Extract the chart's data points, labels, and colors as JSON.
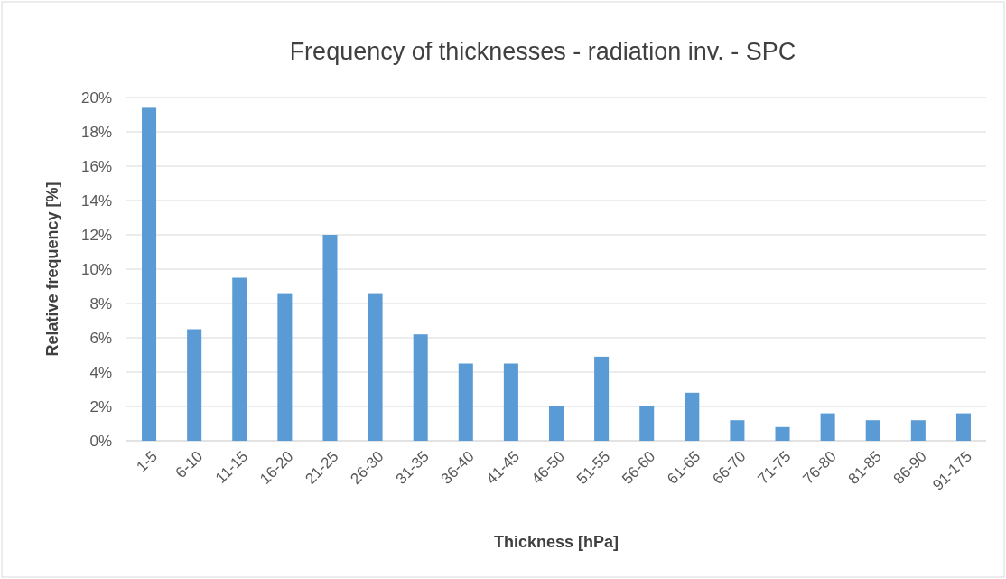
{
  "chart_data": {
    "type": "bar",
    "title": "Frequency of thicknesses - radiation inv. - SPC",
    "xlabel": "Thickness [hPa]",
    "ylabel": "Relative frequency [%]",
    "categories": [
      "1-5",
      "6-10",
      "11-15",
      "16-20",
      "21-25",
      "26-30",
      "31-35",
      "36-40",
      "41-45",
      "46-50",
      "51-55",
      "56-60",
      "61-65",
      "66-70",
      "71-75",
      "76-80",
      "81-85",
      "86-90",
      "91-175"
    ],
    "values": [
      19.4,
      6.5,
      9.5,
      8.6,
      12.0,
      8.6,
      6.2,
      4.5,
      4.5,
      2.0,
      4.9,
      2.0,
      2.8,
      1.2,
      0.8,
      1.6,
      1.2,
      1.2,
      1.6
    ],
    "color": "#5b9bd5",
    "ylim": [
      0,
      20
    ],
    "yticks": [
      {
        "value": 0,
        "label": "0%"
      },
      {
        "value": 2,
        "label": "2%"
      },
      {
        "value": 4,
        "label": "4%"
      },
      {
        "value": 6,
        "label": "6%"
      },
      {
        "value": 8,
        "label": "8%"
      },
      {
        "value": 10,
        "label": "10%"
      },
      {
        "value": 12,
        "label": "12%"
      },
      {
        "value": 14,
        "label": "14%"
      },
      {
        "value": 16,
        "label": "16%"
      },
      {
        "value": 18,
        "label": "18%"
      },
      {
        "value": 20,
        "label": "20%"
      }
    ],
    "grid": "y"
  }
}
